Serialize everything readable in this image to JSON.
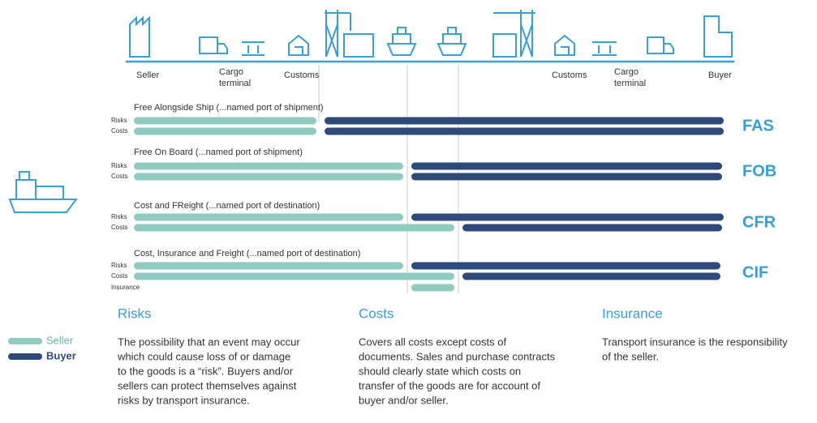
{
  "locations": [
    [
      "Seller"
    ],
    [
      "Cargo",
      "terminal"
    ],
    [
      "Customs"
    ],
    [
      "Customs"
    ],
    [
      "Cargo",
      "terminal"
    ],
    [
      "Buyer"
    ]
  ],
  "terms": [
    {
      "title": "Free Alongside Ship (...named port of shipment)",
      "code": "FAS",
      "rows": [
        "Risks",
        "Costs"
      ]
    },
    {
      "title": "Free On Board (...named port of shipment)",
      "code": "FOB",
      "rows": [
        "Risks",
        "Costs"
      ]
    },
    {
      "title": "Cost and FReight (...named port of destination)",
      "code": "CFR",
      "rows": [
        "Risks",
        "Costs"
      ]
    },
    {
      "title": "Cost, Insurance and Freight  (...named port of destination)",
      "code": "CIF",
      "rows": [
        "Risks",
        "Costs",
        "Insurance"
      ]
    }
  ],
  "legend": [
    "Seller",
    "Buyer"
  ],
  "sections": [
    {
      "heading": "Risks",
      "lines": [
        "The possibility that an event may occur",
        "which could cause loss of or damage",
        "to the goods is a “risk”. Buyers and/or",
        "sellers can protect themselves against",
        "risks by transport insurance."
      ]
    },
    {
      "heading": "Costs",
      "lines": [
        "Covers all costs except costs of",
        "documents. Sales and purchase contracts",
        "should clearly state which costs on",
        "transfer of the goods are for account of",
        "buyer and/or seller."
      ]
    },
    {
      "heading": "Insurance",
      "lines": [
        "Transport insurance is the responsibility",
        "of the seller."
      ]
    }
  ]
}
